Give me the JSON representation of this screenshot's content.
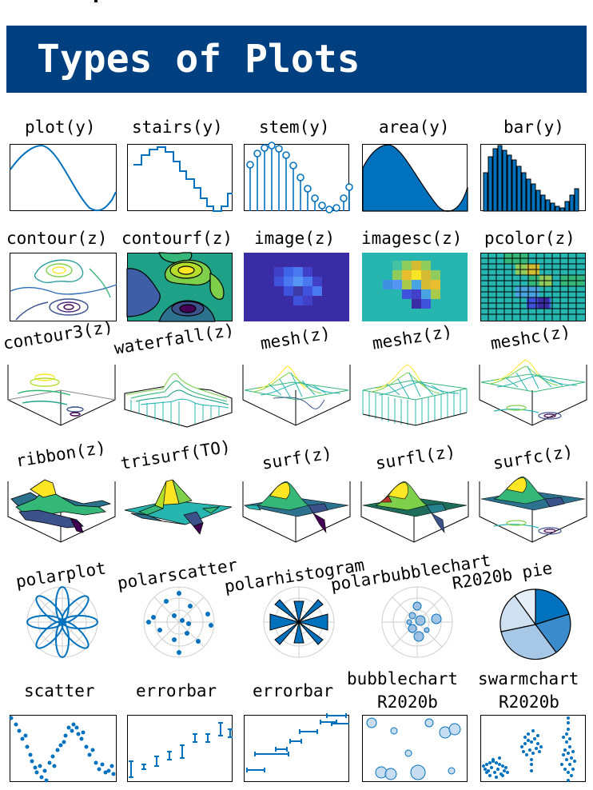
{
  "title": "Types of Plots",
  "colors": {
    "banner": "#003f80",
    "line": "#0072bd",
    "fill": "#0072bd"
  },
  "rows": [
    [
      "plot(y)",
      "stairs(y)",
      "stem(y)",
      "area(y)",
      "bar(y)"
    ],
    [
      "contour(z)",
      "contourf(z)",
      "image(z)",
      "imagesc(z)",
      "pcolor(z)"
    ],
    [
      "contour3(z)",
      "waterfall(z)",
      "mesh(z)",
      "meshz(z)",
      "meshc(z)"
    ],
    [
      "ribbon(z)",
      "trisurf(TO)",
      "surf(z)",
      "surfl(z)",
      "surfc(z)"
    ],
    [
      "polarplot",
      "polarscatter",
      "polarhistogram",
      "polarbubblechart",
      "R2020b pie"
    ],
    [
      "scatter",
      "errorbar",
      "errorbar",
      "bubblechart R2020b",
      "swarmchart R2020b"
    ]
  ],
  "labels": {
    "plot": "plot(y)",
    "stairs": "stairs(y)",
    "stem": "stem(y)",
    "area": "area(y)",
    "bar": "bar(y)",
    "contour": "contour(z)",
    "contourf": "contourf(z)",
    "image": "image(z)",
    "imagesc": "imagesc(z)",
    "pcolor": "pcolor(z)",
    "contour3": "contour3(z)",
    "waterfall": "waterfall(z)",
    "mesh": "mesh(z)",
    "meshz": "meshz(z)",
    "meshc": "meshc(z)",
    "ribbon": "ribbon(z)",
    "trisurf": "trisurf(TO)",
    "surf": "surf(z)",
    "surfl": "surfl(z)",
    "surfc": "surfc(z)",
    "polarplot": "polarplot",
    "polarscatter": "polarscatter",
    "polarhistogram": "polarhistogram",
    "polarbubblechart": "polarbubblechart",
    "pie": "R2020b pie",
    "scatter": "scatter",
    "errorbar1": "errorbar",
    "errorbar2": "errorbar",
    "bubblechart": "bubblechart",
    "bubblechart_release": "R2020b",
    "swarmchart": "swarmchart",
    "swarmchart_release": "R2020b"
  }
}
